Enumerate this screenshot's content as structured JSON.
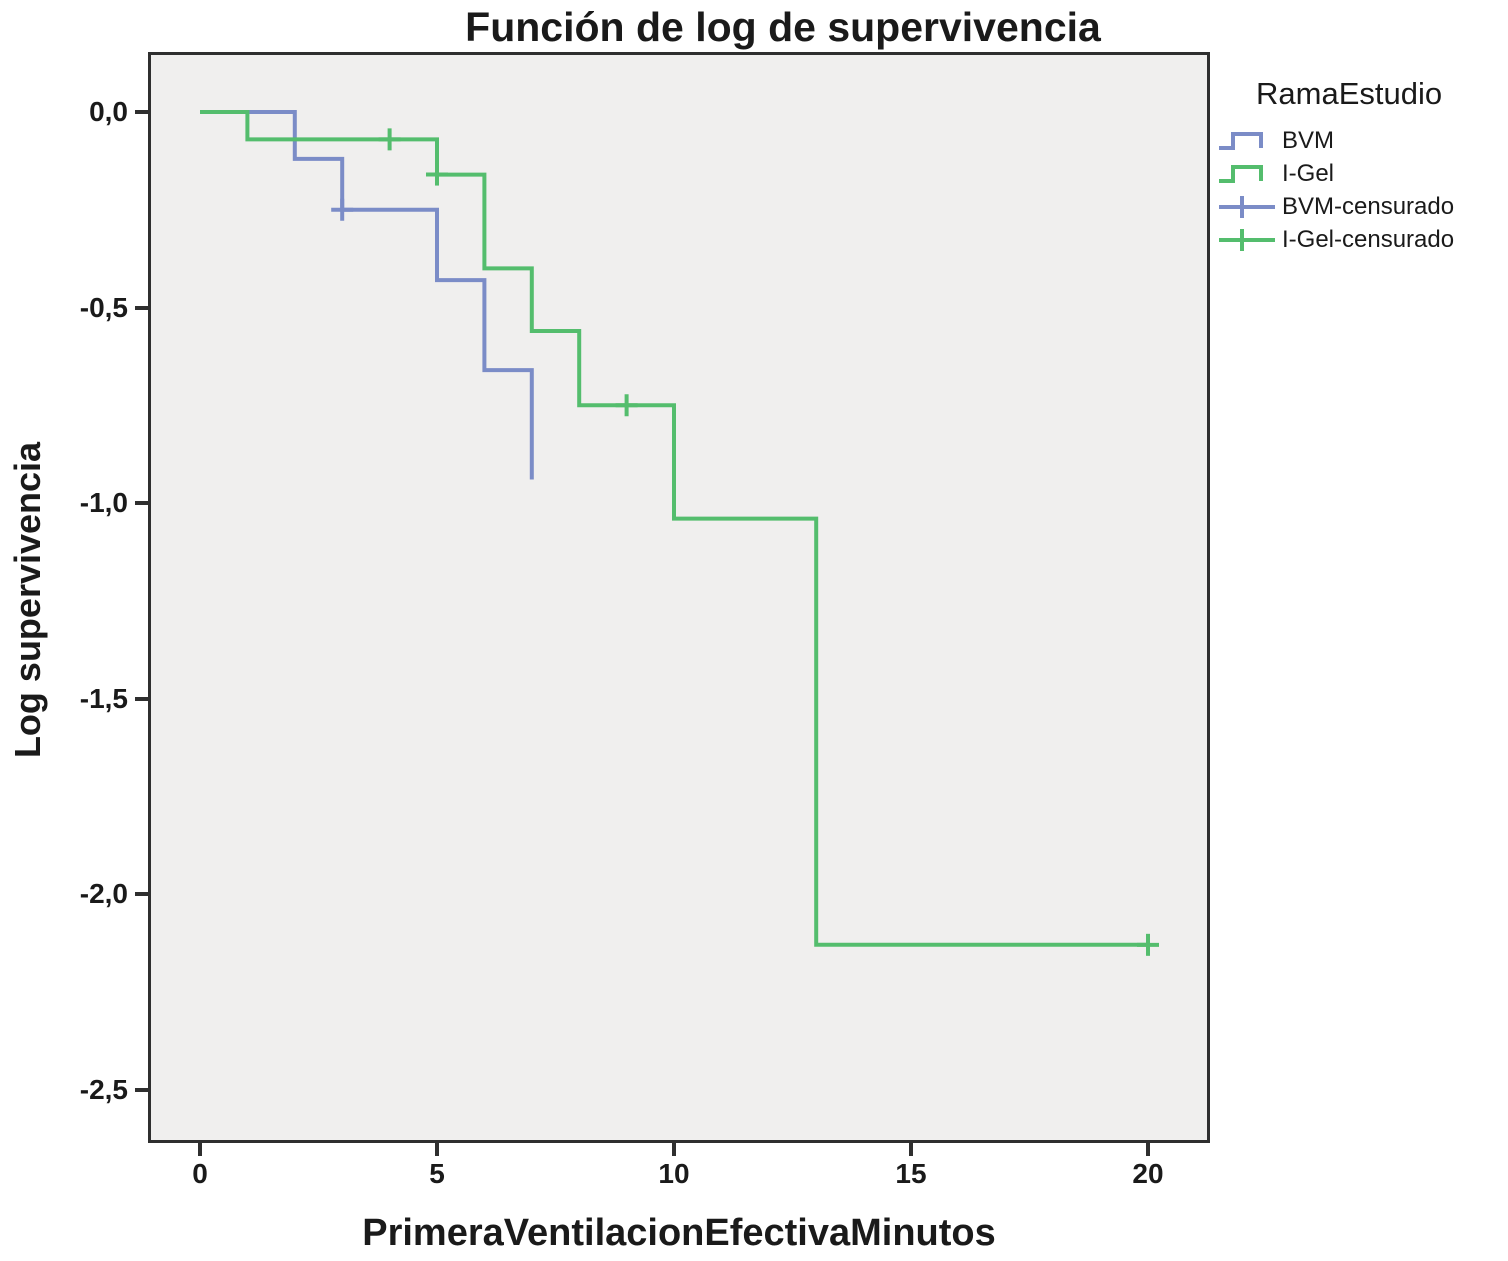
{
  "figure_title": "Función de log de supervivencia",
  "chart_data": {
    "type": "line",
    "subtype": "kaplan-meier-log-survival-step",
    "title": "Función de log de supervivencia",
    "xlabel": "PrimeraVentilacionEfectivaMinutos",
    "ylabel": "Log supervivencia",
    "grid": false,
    "plot_background": "#f0efee",
    "frame_color": "#2f2f2f",
    "xlim": [
      -1.1,
      21.3
    ],
    "ylim": [
      -2.64,
      0.15
    ],
    "x_ticks": [
      {
        "t": 0,
        "label": "0"
      },
      {
        "t": 5,
        "label": "5"
      },
      {
        "t": 10,
        "label": "10"
      },
      {
        "t": 15,
        "label": "15"
      },
      {
        "t": 20,
        "label": "20"
      }
    ],
    "y_ticks": [
      {
        "v": 0.0,
        "label": "0,0"
      },
      {
        "v": -0.5,
        "label": "-0,5"
      },
      {
        "v": -1.0,
        "label": "-1,0"
      },
      {
        "v": -1.5,
        "label": "-1,5"
      },
      {
        "v": -2.0,
        "label": "-2,0"
      },
      {
        "v": -2.5,
        "label": "-2,5"
      }
    ],
    "legend": {
      "position": "right",
      "title": "RamaEstudio",
      "entries": [
        {
          "label": "BVM",
          "type": "step",
          "color": "#7b8cc7"
        },
        {
          "label": "I-Gel",
          "type": "step",
          "color": "#54bd6d"
        },
        {
          "label": "BVM-censurado",
          "type": "censored",
          "color": "#7b8cc7"
        },
        {
          "label": "I-Gel-censurado",
          "type": "censored",
          "color": "#54bd6d"
        }
      ]
    },
    "series": [
      {
        "name": "BVM",
        "color": "#7b8cc7",
        "steps": [
          [
            0,
            0
          ],
          [
            2,
            0
          ],
          [
            2,
            -0.12
          ],
          [
            3,
            -0.12
          ],
          [
            3,
            -0.25
          ],
          [
            5,
            -0.25
          ],
          [
            5,
            -0.43
          ],
          [
            6,
            -0.43
          ],
          [
            6,
            -0.66
          ],
          [
            7,
            -0.66
          ],
          [
            7,
            -0.94
          ]
        ],
        "censored": [
          [
            3,
            -0.25
          ]
        ]
      },
      {
        "name": "I-Gel",
        "color": "#54bd6d",
        "steps": [
          [
            0,
            0
          ],
          [
            1,
            0
          ],
          [
            1,
            -0.07
          ],
          [
            5,
            -0.07
          ],
          [
            5,
            -0.16
          ],
          [
            6,
            -0.16
          ],
          [
            6,
            -0.4
          ],
          [
            7,
            -0.4
          ],
          [
            7,
            -0.56
          ],
          [
            8,
            -0.56
          ],
          [
            8,
            -0.75
          ],
          [
            10,
            -0.75
          ],
          [
            10,
            -1.04
          ],
          [
            13,
            -1.04
          ],
          [
            13,
            -2.13
          ],
          [
            20,
            -2.13
          ]
        ],
        "censored": [
          [
            4,
            -0.07
          ],
          [
            5,
            -0.16
          ],
          [
            9,
            -0.75
          ],
          [
            20,
            -2.13
          ]
        ]
      }
    ]
  }
}
